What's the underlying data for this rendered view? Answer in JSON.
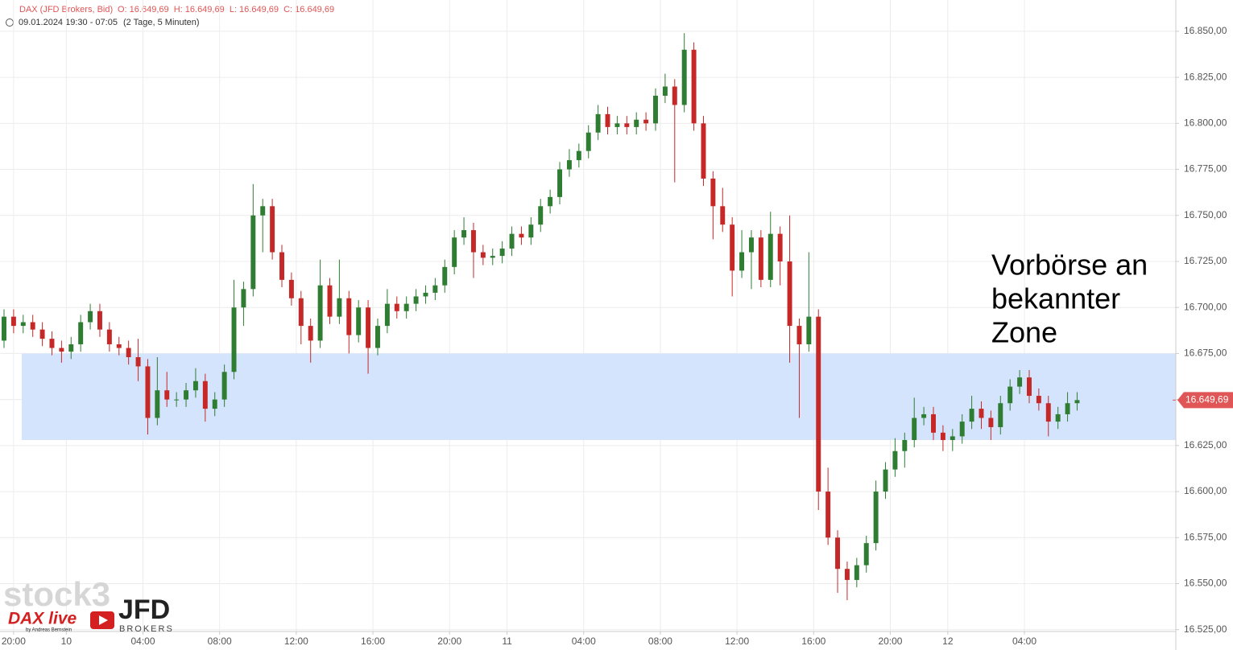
{
  "chart_data": {
    "type": "candlestick",
    "header": {
      "symbol": "DAX (JFD Brokers, Bid)",
      "ohlc_text": "O: 16.649,69  H: 16.649,69  L: 16.649,69  C: 16.649,69",
      "period": "09.01.2024 19:30 - 07:05",
      "interval": "(2 Tage, 5 Minuten)"
    },
    "annotation": [
      "Vorbörse an",
      "bekannter",
      "Zone"
    ],
    "zone": [
      16628,
      16675
    ],
    "last_price": {
      "value": 16649.69,
      "label": "16.649,69"
    },
    "logos": {
      "stock3": "stock3",
      "daxlive": "DAX live",
      "byline": "by Andreas Bernstein",
      "jfd": "JFD",
      "brokers": "BROKERS"
    },
    "up_color": "#2e7d32",
    "down_color": "#c62828",
    "zone_color": "#d4e4fc",
    "grid": true,
    "xlim": [
      -0.42,
      122.3
    ],
    "xticks": [
      {
        "value": 1,
        "label": "20:00"
      },
      {
        "value": 6.5,
        "label": "10"
      },
      {
        "value": 14.5,
        "label": "04:00"
      },
      {
        "value": 22.5,
        "label": "08:00"
      },
      {
        "value": 30.5,
        "label": "12:00"
      },
      {
        "value": 38.5,
        "label": "16:00"
      },
      {
        "value": 46.5,
        "label": "20:00"
      },
      {
        "value": 52.5,
        "label": "11"
      },
      {
        "value": 60.5,
        "label": "04:00"
      },
      {
        "value": 68.5,
        "label": "08:00"
      },
      {
        "value": 76.5,
        "label": "12:00"
      },
      {
        "value": 84.5,
        "label": "16:00"
      },
      {
        "value": 92.5,
        "label": "20:00"
      },
      {
        "value": 98.5,
        "label": "12"
      },
      {
        "value": 106.5,
        "label": "04:00"
      }
    ],
    "ylim": [
      16524,
      16867
    ],
    "yticks": [
      {
        "value": 16525,
        "label": "16.525,00"
      },
      {
        "value": 16550,
        "label": "16.550,00"
      },
      {
        "value": 16575,
        "label": "16.575,00"
      },
      {
        "value": 16600,
        "label": "16.600,00"
      },
      {
        "value": 16625,
        "label": "16.625,00"
      },
      {
        "value": 16650,
        "label": "16.650,00"
      },
      {
        "value": 16675,
        "label": "16.675,00"
      },
      {
        "value": 16700,
        "label": "16.700,00"
      },
      {
        "value": 16725,
        "label": "16.725,00"
      },
      {
        "value": 16750,
        "label": "16.750,00"
      },
      {
        "value": 16775,
        "label": "16.775,00"
      },
      {
        "value": 16800,
        "label": "16.800,00"
      },
      {
        "value": 16825,
        "label": "16.825,00"
      },
      {
        "value": 16850,
        "label": "16.850,00"
      }
    ],
    "ohlc": [
      [
        16682,
        16699,
        16678,
        16695
      ],
      [
        16695,
        16699,
        16686,
        16690
      ],
      [
        16690,
        16696,
        16686,
        16692
      ],
      [
        16692,
        16696,
        16684,
        16688
      ],
      [
        16688,
        16692,
        16679,
        16683
      ],
      [
        16683,
        16687,
        16674,
        16678
      ],
      [
        16678,
        16682,
        16670,
        16676
      ],
      [
        16676,
        16684,
        16672,
        16680
      ],
      [
        16680,
        16696,
        16676,
        16692
      ],
      [
        16692,
        16702,
        16688,
        16698
      ],
      [
        16698,
        16702,
        16684,
        16688
      ],
      [
        16688,
        16692,
        16676,
        16680
      ],
      [
        16680,
        16684,
        16674,
        16678
      ],
      [
        16678,
        16682,
        16669,
        16673
      ],
      [
        16673,
        16683,
        16660,
        16668
      ],
      [
        16668,
        16672,
        16631,
        16640
      ],
      [
        16640,
        16673,
        16636,
        16655
      ],
      [
        16655,
        16665,
        16646,
        16650
      ],
      [
        16650,
        16654,
        16646,
        16650
      ],
      [
        16650,
        16659,
        16646,
        16655
      ],
      [
        16655,
        16667,
        16651,
        16660
      ],
      [
        16660,
        16664,
        16638,
        16645
      ],
      [
        16645,
        16654,
        16641,
        16650
      ],
      [
        16650,
        16669,
        16646,
        16665
      ],
      [
        16665,
        16715,
        16661,
        16700
      ],
      [
        16700,
        16714,
        16690,
        16710
      ],
      [
        16710,
        16767,
        16706,
        16750
      ],
      [
        16750,
        16759,
        16730,
        16755
      ],
      [
        16755,
        16759,
        16726,
        16730
      ],
      [
        16730,
        16734,
        16711,
        16715
      ],
      [
        16715,
        16719,
        16701,
        16705
      ],
      [
        16705,
        16709,
        16680,
        16690
      ],
      [
        16690,
        16694,
        16670,
        16682
      ],
      [
        16682,
        16726,
        16678,
        16712
      ],
      [
        16712,
        16716,
        16691,
        16695
      ],
      [
        16695,
        16726,
        16691,
        16705
      ],
      [
        16705,
        16709,
        16675,
        16685
      ],
      [
        16685,
        16704,
        16681,
        16700
      ],
      [
        16700,
        16704,
        16664,
        16678
      ],
      [
        16678,
        16694,
        16674,
        16690
      ],
      [
        16690,
        16710,
        16686,
        16702
      ],
      [
        16702,
        16706,
        16694,
        16698
      ],
      [
        16698,
        16706,
        16694,
        16702
      ],
      [
        16702,
        16710,
        16698,
        16706
      ],
      [
        16706,
        16712,
        16702,
        16708
      ],
      [
        16708,
        16716,
        16704,
        16712
      ],
      [
        16712,
        16726,
        16708,
        16722
      ],
      [
        16722,
        16742,
        16718,
        16738
      ],
      [
        16738,
        16749,
        16734,
        16742
      ],
      [
        16742,
        16746,
        16716,
        16730
      ],
      [
        16730,
        16734,
        16723,
        16727
      ],
      [
        16727,
        16732,
        16723,
        16728
      ],
      [
        16728,
        16736,
        16724,
        16732
      ],
      [
        16732,
        16744,
        16728,
        16740
      ],
      [
        16740,
        16744,
        16734,
        16738
      ],
      [
        16738,
        16749,
        16734,
        16745
      ],
      [
        16745,
        16759,
        16741,
        16755
      ],
      [
        16755,
        16764,
        16751,
        16760
      ],
      [
        16760,
        16779,
        16756,
        16775
      ],
      [
        16775,
        16786,
        16771,
        16780
      ],
      [
        16780,
        16789,
        16776,
        16785
      ],
      [
        16785,
        16799,
        16781,
        16795
      ],
      [
        16795,
        16810,
        16791,
        16805
      ],
      [
        16805,
        16809,
        16794,
        16798
      ],
      [
        16798,
        16804,
        16794,
        16800
      ],
      [
        16800,
        16804,
        16794,
        16798
      ],
      [
        16798,
        16806,
        16794,
        16802
      ],
      [
        16802,
        16806,
        16796,
        16800
      ],
      [
        16800,
        16819,
        16796,
        16815
      ],
      [
        16815,
        16827,
        16811,
        16820
      ],
      [
        16820,
        16824,
        16768,
        16810
      ],
      [
        16810,
        16849,
        16806,
        16840
      ],
      [
        16840,
        16844,
        16796,
        16800
      ],
      [
        16800,
        16804,
        16766,
        16770
      ],
      [
        16770,
        16774,
        16737,
        16755
      ],
      [
        16755,
        16765,
        16741,
        16745
      ],
      [
        16745,
        16749,
        16706,
        16720
      ],
      [
        16720,
        16742,
        16716,
        16730
      ],
      [
        16730,
        16742,
        16710,
        16738
      ],
      [
        16738,
        16742,
        16711,
        16715
      ],
      [
        16715,
        16752,
        16711,
        16740
      ],
      [
        16740,
        16744,
        16712,
        16725
      ],
      [
        16725,
        16750,
        16670,
        16690
      ],
      [
        16690,
        16694,
        16640,
        16680
      ],
      [
        16680,
        16730,
        16676,
        16695
      ],
      [
        16695,
        16699,
        16590,
        16600
      ],
      [
        16600,
        16613,
        16571,
        16575
      ],
      [
        16575,
        16579,
        16545,
        16558
      ],
      [
        16558,
        16562,
        16541,
        16552
      ],
      [
        16552,
        16564,
        16548,
        16560
      ],
      [
        16560,
        16576,
        16556,
        16572
      ],
      [
        16572,
        16606,
        16568,
        16600
      ],
      [
        16600,
        16616,
        16596,
        16612
      ],
      [
        16612,
        16629,
        16608,
        16622
      ],
      [
        16622,
        16632,
        16613,
        16628
      ],
      [
        16628,
        16651,
        16624,
        16640
      ],
      [
        16640,
        16646,
        16636,
        16642
      ],
      [
        16642,
        16646,
        16628,
        16632
      ],
      [
        16632,
        16636,
        16622,
        16628
      ],
      [
        16628,
        16634,
        16622,
        16630
      ],
      [
        16630,
        16642,
        16626,
        16638
      ],
      [
        16638,
        16652,
        16634,
        16645
      ],
      [
        16645,
        16649,
        16634,
        16640
      ],
      [
        16640,
        16644,
        16628,
        16635
      ],
      [
        16635,
        16652,
        16631,
        16648
      ],
      [
        16648,
        16661,
        16644,
        16657
      ],
      [
        16657,
        16666,
        16653,
        16662
      ],
      [
        16662,
        16666,
        16648,
        16652
      ],
      [
        16652,
        16656,
        16644,
        16648
      ],
      [
        16648,
        16652,
        16630,
        16638
      ],
      [
        16638,
        16646,
        16634,
        16642
      ],
      [
        16642,
        16654,
        16638,
        16648
      ],
      [
        16648,
        16654,
        16644,
        16649.69
      ]
    ]
  }
}
